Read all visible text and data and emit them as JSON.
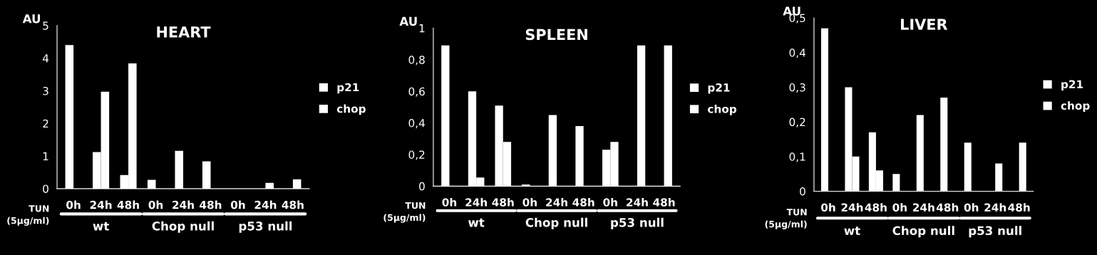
{
  "chart_data": [
    {
      "type": "bar",
      "title": "HEART",
      "ylabel": "AU",
      "categories": [
        "0h",
        "24h",
        "48h",
        "0h",
        "24h",
        "48h",
        "0h",
        "24h",
        "48h"
      ],
      "series": [
        {
          "name": "p21",
          "color": "#ffffff",
          "values": [
            4.4,
            1.12,
            0.42,
            0.27,
            1.16,
            0.84,
            0,
            0,
            0
          ]
        },
        {
          "name": "chop",
          "color": "#ffffff",
          "values": [
            0,
            2.97,
            3.84,
            0,
            0,
            0,
            0,
            0.18,
            0.29
          ]
        }
      ],
      "ylim": [
        0,
        5
      ],
      "yticks": [
        0,
        1,
        2,
        3,
        4,
        5
      ],
      "legend": "right",
      "grid": false,
      "annotations": [
        "TUN\n(5µg/ml)",
        "wt",
        "Chop null",
        "p53 null"
      ]
    },
    {
      "type": "bar",
      "title": "SPLEEN",
      "ylabel": "AU",
      "categories": [
        "0h",
        "24h",
        "48h",
        "0h",
        "24h",
        "48h",
        "0h",
        "24h",
        "48h"
      ],
      "series": [
        {
          "name": "p21",
          "color": "#ffffff",
          "values": [
            0.89,
            0.6,
            0.51,
            0.01,
            0.45,
            0.38,
            0.23,
            0,
            0
          ]
        },
        {
          "name": "chop",
          "color": "#ffffff",
          "values": [
            0,
            0.055,
            0.28,
            0,
            0,
            0,
            0.28,
            0.89,
            0.89
          ]
        }
      ],
      "ylim": [
        0,
        1
      ],
      "yticks": [
        0,
        {
          "value": 0.2,
          "label": "0,2"
        },
        {
          "value": 0.4,
          "label": "0,4"
        },
        {
          "value": 0.6,
          "label": "0,6"
        },
        {
          "value": 0.8,
          "label": "0,8"
        },
        1
      ],
      "legend": "right",
      "grid": false,
      "annotations": [
        "TUN\n(5µg/ml)",
        "wt",
        "Chop null",
        "p53 null"
      ]
    },
    {
      "type": "bar",
      "title": "LIVER",
      "ylabel": "AU",
      "categories": [
        "0h",
        "24h",
        "48h",
        "0h",
        "24h",
        "48h",
        "0h",
        "24h",
        "48h"
      ],
      "series": [
        {
          "name": "p21",
          "color": "#ffffff",
          "values": [
            0.47,
            0.3,
            0.17,
            0.05,
            0.22,
            0.27,
            0.14,
            0,
            0
          ]
        },
        {
          "name": "chop",
          "color": "#ffffff",
          "values": [
            0,
            0.1,
            0.06,
            0,
            0,
            0,
            0,
            0.08,
            0.14
          ]
        }
      ],
      "ylim": [
        0,
        0.5
      ],
      "yticks": [
        0,
        {
          "value": 0.1,
          "label": "0,1"
        },
        {
          "value": 0.2,
          "label": "0,2"
        },
        {
          "value": 0.3,
          "label": "0,3"
        },
        {
          "value": 0.4,
          "label": "0,4"
        },
        {
          "value": 0.5,
          "label": "0,5"
        }
      ],
      "legend": "right",
      "grid": false,
      "annotations": [
        "TUN\n(5µg/ml)",
        "wt",
        "Chop null",
        "p53 null"
      ]
    }
  ]
}
